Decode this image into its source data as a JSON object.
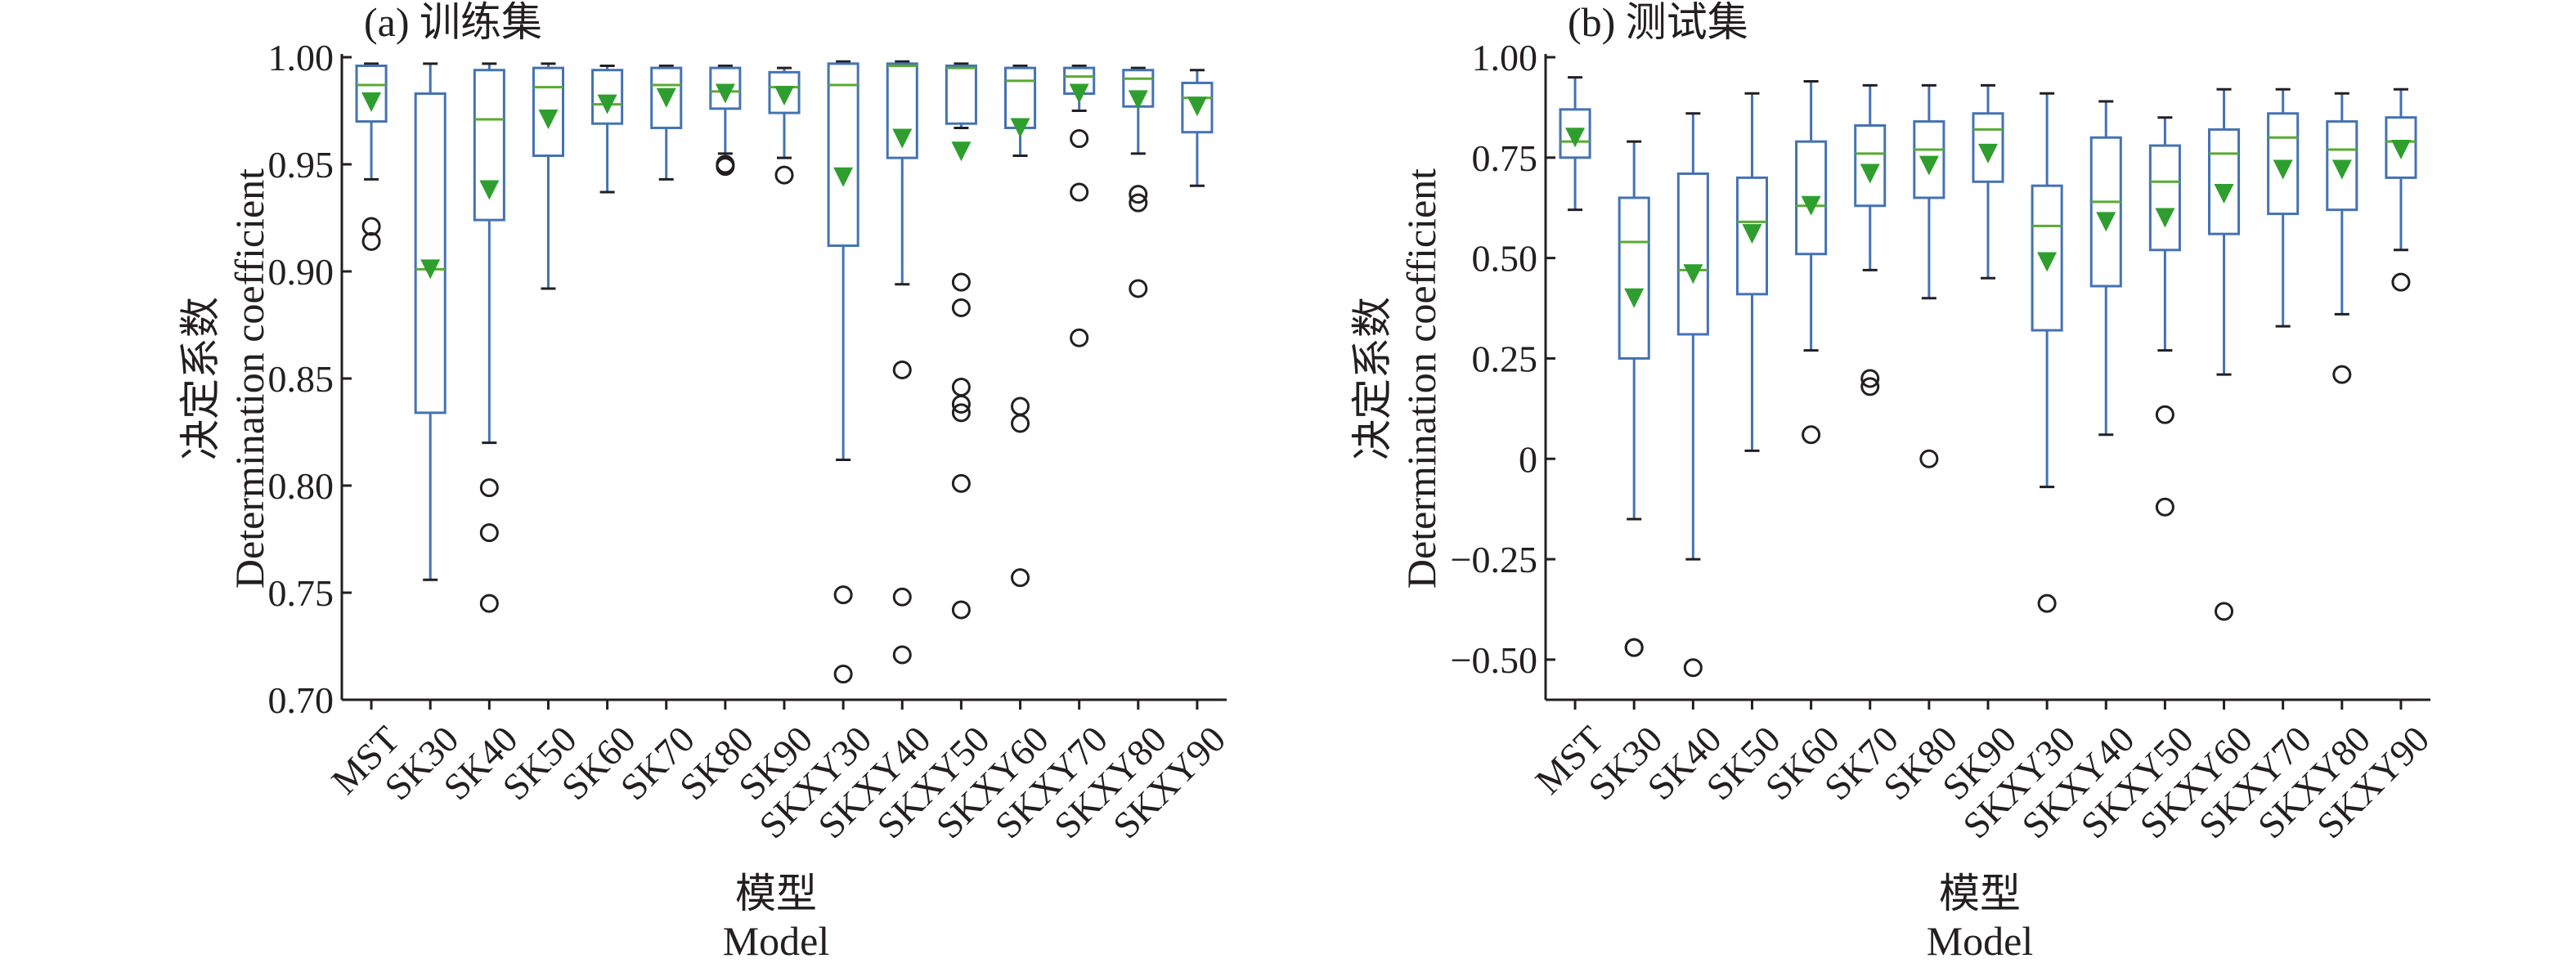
{
  "colors": {
    "box": "#4472b4",
    "median": "#5aaa32",
    "mean": "#2e9f2e",
    "outlier": "#231f20",
    "axis": "#231f20"
  },
  "chart_data": [
    {
      "type": "box",
      "title": "(a) 训练集",
      "ylabel_cn": "决定系数",
      "ylabel_en": "Determination coefficient",
      "xlabel_cn": "模型",
      "xlabel_en": "Model",
      "ylim": [
        0.7,
        1.0
      ],
      "yticks": [
        0.7,
        0.75,
        0.8,
        0.85,
        0.9,
        0.95,
        1.0
      ],
      "ytick_labels": [
        "0.70",
        "0.75",
        "0.80",
        "0.85",
        "0.90",
        "0.95",
        "1.00"
      ],
      "categories": [
        "MST",
        "SK30",
        "SK40",
        "SK50",
        "SK60",
        "SK70",
        "SK80",
        "SK90",
        "SKXY30",
        "SKXY40",
        "SKXY50",
        "SKXY60",
        "SKXY70",
        "SKXY80",
        "SKXY90"
      ],
      "boxes": [
        {
          "whislo": 0.943,
          "q1": 0.97,
          "med": 0.987,
          "q3": 0.996,
          "whishi": 0.997,
          "mean": 0.979,
          "fliers": [
            0.921,
            0.914
          ]
        },
        {
          "whislo": 0.756,
          "q1": 0.834,
          "med": 0.901,
          "q3": 0.983,
          "whishi": 0.997,
          "mean": 0.901,
          "fliers": []
        },
        {
          "whislo": 0.82,
          "q1": 0.924,
          "med": 0.971,
          "q3": 0.994,
          "whishi": 0.997,
          "mean": 0.938,
          "fliers": [
            0.799,
            0.778,
            0.745
          ]
        },
        {
          "whislo": 0.892,
          "q1": 0.954,
          "med": 0.986,
          "q3": 0.995,
          "whishi": 0.997,
          "mean": 0.971,
          "fliers": []
        },
        {
          "whislo": 0.937,
          "q1": 0.969,
          "med": 0.978,
          "q3": 0.994,
          "whishi": 0.996,
          "mean": 0.978,
          "fliers": []
        },
        {
          "whislo": 0.943,
          "q1": 0.967,
          "med": 0.987,
          "q3": 0.995,
          "whishi": 0.996,
          "mean": 0.981,
          "fliers": []
        },
        {
          "whislo": 0.955,
          "q1": 0.976,
          "med": 0.984,
          "q3": 0.995,
          "whishi": 0.996,
          "mean": 0.983,
          "fliers": [
            0.95,
            0.949
          ]
        },
        {
          "whislo": 0.953,
          "q1": 0.974,
          "med": 0.986,
          "q3": 0.993,
          "whishi": 0.995,
          "mean": 0.982,
          "fliers": [
            0.945
          ]
        },
        {
          "whislo": 0.812,
          "q1": 0.912,
          "med": 0.987,
          "q3": 0.997,
          "whishi": 0.998,
          "mean": 0.944,
          "fliers": [
            0.749,
            0.712
          ]
        },
        {
          "whislo": 0.894,
          "q1": 0.953,
          "med": 0.996,
          "q3": 0.997,
          "whishi": 0.998,
          "mean": 0.962,
          "fliers": [
            0.854,
            0.748,
            0.721
          ]
        },
        {
          "whislo": 0.967,
          "q1": 0.969,
          "med": 0.995,
          "q3": 0.996,
          "whishi": 0.997,
          "mean": 0.956,
          "fliers": [
            0.895,
            0.883,
            0.846,
            0.838,
            0.834,
            0.801,
            0.742
          ]
        },
        {
          "whislo": 0.954,
          "q1": 0.967,
          "med": 0.989,
          "q3": 0.995,
          "whishi": 0.996,
          "mean": 0.967,
          "fliers": [
            0.837,
            0.829,
            0.757
          ]
        },
        {
          "whislo": 0.975,
          "q1": 0.983,
          "med": 0.991,
          "q3": 0.995,
          "whishi": 0.996,
          "mean": 0.983,
          "fliers": [
            0.962,
            0.937,
            0.869
          ]
        },
        {
          "whislo": 0.955,
          "q1": 0.977,
          "med": 0.99,
          "q3": 0.994,
          "whishi": 0.995,
          "mean": 0.98,
          "fliers": [
            0.936,
            0.932,
            0.892
          ]
        },
        {
          "whislo": 0.94,
          "q1": 0.965,
          "med": 0.981,
          "q3": 0.988,
          "whishi": 0.994,
          "mean": 0.977,
          "fliers": []
        }
      ]
    },
    {
      "type": "box",
      "title": "(b) 测试集",
      "ylabel_cn": "决定系数",
      "ylabel_en": "Determination coefficient",
      "xlabel_cn": "模型",
      "xlabel_en": "Model",
      "ylim": [
        -0.6,
        1.0
      ],
      "yticks": [
        -0.5,
        -0.25,
        0,
        0.25,
        0.5,
        0.75,
        1.0
      ],
      "ytick_labels": [
        "−0.50",
        "−0.25",
        "0",
        "0.25",
        "0.50",
        "0.75",
        "1.00"
      ],
      "categories": [
        "MST",
        "SK30",
        "SK40",
        "SK50",
        "SK60",
        "SK70",
        "SK80",
        "SK90",
        "SKXY30",
        "SKXY40",
        "SKXY50",
        "SKXY60",
        "SKXY70",
        "SKXY80",
        "SKXY90"
      ],
      "boxes": [
        {
          "whislo": 0.62,
          "q1": 0.75,
          "med": 0.79,
          "q3": 0.87,
          "whishi": 0.95,
          "mean": 0.8,
          "fliers": []
        },
        {
          "whislo": -0.15,
          "q1": 0.25,
          "med": 0.54,
          "q3": 0.65,
          "whishi": 0.79,
          "mean": 0.4,
          "fliers": [
            -0.47,
            -0.47
          ]
        },
        {
          "whislo": -0.25,
          "q1": 0.31,
          "med": 0.47,
          "q3": 0.71,
          "whishi": 0.86,
          "mean": 0.46,
          "fliers": [
            -0.52
          ]
        },
        {
          "whislo": 0.02,
          "q1": 0.41,
          "med": 0.59,
          "q3": 0.7,
          "whishi": 0.91,
          "mean": 0.56,
          "fliers": []
        },
        {
          "whislo": 0.27,
          "q1": 0.51,
          "med": 0.63,
          "q3": 0.79,
          "whishi": 0.94,
          "mean": 0.63,
          "fliers": [
            0.06
          ]
        },
        {
          "whislo": 0.47,
          "q1": 0.63,
          "med": 0.76,
          "q3": 0.83,
          "whishi": 0.93,
          "mean": 0.71,
          "fliers": [
            0.2,
            0.18
          ]
        },
        {
          "whislo": 0.4,
          "q1": 0.65,
          "med": 0.77,
          "q3": 0.84,
          "whishi": 0.93,
          "mean": 0.73,
          "fliers": [
            0.0
          ]
        },
        {
          "whislo": 0.45,
          "q1": 0.69,
          "med": 0.82,
          "q3": 0.86,
          "whishi": 0.93,
          "mean": 0.76,
          "fliers": []
        },
        {
          "whislo": -0.07,
          "q1": 0.32,
          "med": 0.58,
          "q3": 0.68,
          "whishi": 0.91,
          "mean": 0.49,
          "fliers": [
            -0.36
          ]
        },
        {
          "whislo": 0.06,
          "q1": 0.43,
          "med": 0.64,
          "q3": 0.8,
          "whishi": 0.89,
          "mean": 0.59,
          "fliers": []
        },
        {
          "whislo": 0.27,
          "q1": 0.52,
          "med": 0.69,
          "q3": 0.78,
          "whishi": 0.85,
          "mean": 0.6,
          "fliers": [
            0.11,
            -0.12
          ]
        },
        {
          "whislo": 0.21,
          "q1": 0.56,
          "med": 0.76,
          "q3": 0.82,
          "whishi": 0.92,
          "mean": 0.66,
          "fliers": [
            -0.38
          ]
        },
        {
          "whislo": 0.33,
          "q1": 0.61,
          "med": 0.8,
          "q3": 0.86,
          "whishi": 0.92,
          "mean": 0.72,
          "fliers": []
        },
        {
          "whislo": 0.36,
          "q1": 0.62,
          "med": 0.77,
          "q3": 0.84,
          "whishi": 0.91,
          "mean": 0.72,
          "fliers": [
            0.21
          ]
        },
        {
          "whislo": 0.52,
          "q1": 0.7,
          "med": 0.79,
          "q3": 0.85,
          "whishi": 0.92,
          "mean": 0.77,
          "fliers": [
            0.44
          ]
        }
      ]
    }
  ]
}
